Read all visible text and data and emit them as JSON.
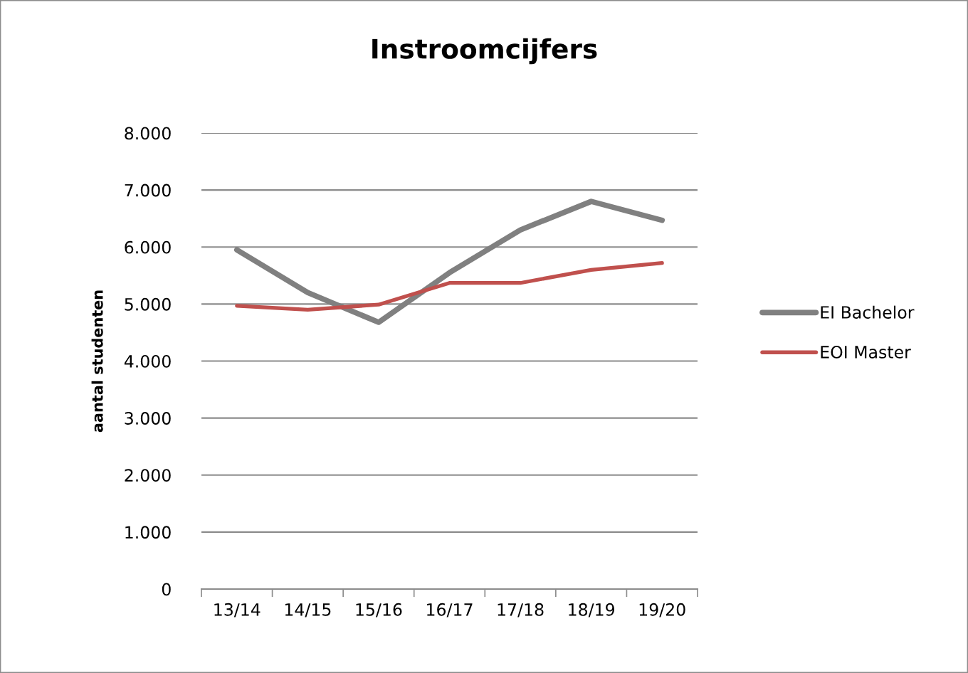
{
  "chart_data": {
    "type": "line",
    "title": "Instroomcijfers",
    "ylabel": "aantal studenten",
    "categories": [
      "13/14",
      "14/15",
      "15/16",
      "16/17",
      "17/18",
      "18/19",
      "19/20"
    ],
    "series": [
      {
        "name": "EI Bachelor",
        "color": "#808080",
        "values": [
          5950,
          5200,
          4680,
          5550,
          6300,
          6800,
          6470
        ]
      },
      {
        "name": "EOI Master",
        "color": "#c0504d",
        "values": [
          4970,
          4900,
          4990,
          5370,
          5370,
          5600,
          5720
        ]
      }
    ],
    "ylim": [
      0,
      8000
    ],
    "yticks": [
      {
        "value": 0,
        "label": "0"
      },
      {
        "value": 1000,
        "label": "1.000"
      },
      {
        "value": 2000,
        "label": "2.000"
      },
      {
        "value": 3000,
        "label": "3.000"
      },
      {
        "value": 4000,
        "label": "4.000"
      },
      {
        "value": 5000,
        "label": "5.000"
      },
      {
        "value": 6000,
        "label": "6.000"
      },
      {
        "value": 7000,
        "label": "7.000"
      },
      {
        "value": 8000,
        "label": "8.000"
      }
    ],
    "grid": "y",
    "legend": "right",
    "marker": "none",
    "line_style": "solid"
  }
}
